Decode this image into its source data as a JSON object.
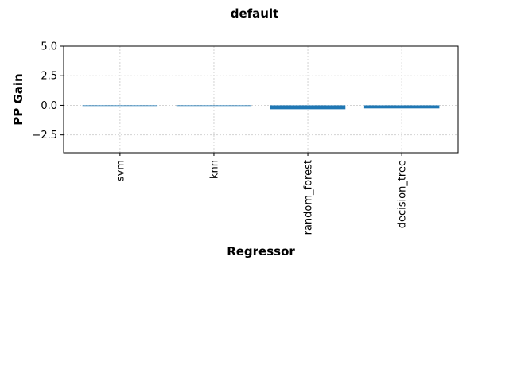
{
  "chart_data": {
    "type": "bar",
    "title": "default",
    "xlabel": "Regressor",
    "ylabel": "PP Gain",
    "categories": [
      "svm",
      "knn",
      "random_forest",
      "decision_tree"
    ],
    "values": [
      0.0,
      -0.02,
      -0.33,
      -0.26
    ],
    "ylim": [
      -4.0,
      5.0
    ],
    "yticks": [
      -2.5,
      0.0,
      2.5,
      5.0
    ],
    "ytick_labels": [
      "−2.5",
      "0.0",
      "2.5",
      "5.0"
    ],
    "grid": true,
    "bar_color": "#1f77b4",
    "grid_color": "#d3d3d3"
  }
}
